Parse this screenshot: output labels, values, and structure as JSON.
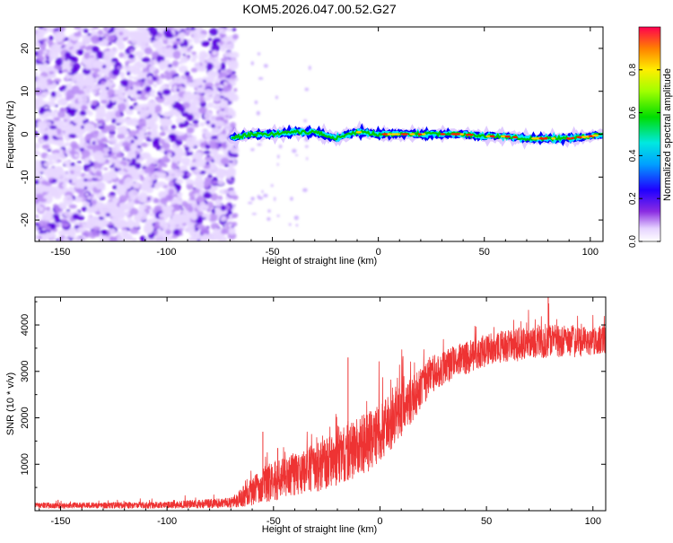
{
  "title": "KOM5.2026.047.00.52.G27",
  "chart_data": [
    {
      "type": "heatmap",
      "xlabel": "Height of straight line (km)",
      "ylabel": "Frequency (Hz)",
      "xlim": [
        -162,
        106
      ],
      "ylim": [
        -25,
        25
      ],
      "xticks": [
        -150,
        -100,
        -50,
        0,
        50,
        100
      ],
      "yticks": [
        -20,
        -10,
        0,
        10,
        20
      ],
      "noise_region_x": [
        -162,
        -69
      ],
      "signal_track": {
        "x": [
          -69,
          -60,
          -50,
          -40,
          -30,
          -20,
          -10,
          0,
          10,
          20,
          30,
          40,
          50,
          60,
          70,
          80,
          90,
          100,
          106
        ],
        "frequency_hz": [
          -1,
          0,
          0,
          0.5,
          0.5,
          -1,
          0.5,
          0,
          0,
          0,
          0,
          0,
          -0.5,
          -0.5,
          -1,
          -1,
          -1,
          -0.5,
          0
        ]
      },
      "colorbar": {
        "label": "Normalized spectral amplitude",
        "range": [
          0,
          1
        ],
        "ticks": [
          "0.0",
          "0.2",
          "0.4",
          "0.6",
          "0.8"
        ]
      },
      "colors": {
        "low": "#e8d8ff",
        "mid": "#5a00e0",
        "track_outer": "#0000ff",
        "track_mid": "#00e5ff",
        "track_high": "#00c800",
        "track_peak": "#ff2000"
      }
    },
    {
      "type": "line",
      "xlabel": "Height of straight line (km)",
      "ylabel": "SNR (10 * v/v)",
      "xlim": [
        -162,
        106
      ],
      "ylim": [
        0,
        4600
      ],
      "xticks": [
        -150,
        -100,
        -50,
        0,
        50,
        100
      ],
      "yticks": [
        1000,
        2000,
        3000,
        4000
      ],
      "series": [
        {
          "name": "SNR",
          "color": "#ee3333",
          "envelope_x": [
            -162,
            -100,
            -70,
            -62,
            -55,
            -45,
            -35,
            -25,
            -15,
            -5,
            5,
            15,
            25,
            35,
            50,
            60,
            70,
            80,
            90,
            100,
            106
          ],
          "envelope_mean": [
            110,
            120,
            170,
            350,
            550,
            700,
            850,
            1000,
            1250,
            1500,
            1900,
            2400,
            2950,
            3200,
            3450,
            3550,
            3600,
            3650,
            3650,
            3650,
            3700
          ],
          "envelope_spread": [
            60,
            70,
            110,
            250,
            400,
            450,
            500,
            550,
            600,
            650,
            600,
            500,
            400,
            350,
            350,
            350,
            350,
            350,
            350,
            300,
            300
          ],
          "spikes": [
            {
              "x": -55,
              "y": 1700
            },
            {
              "x": -48,
              "y": 1350
            },
            {
              "x": -15,
              "y": 3300
            },
            {
              "x": 79,
              "y": 4600
            }
          ]
        }
      ]
    }
  ]
}
